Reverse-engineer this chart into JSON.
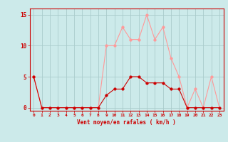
{
  "x": [
    0,
    1,
    2,
    3,
    4,
    5,
    6,
    7,
    8,
    9,
    10,
    11,
    12,
    13,
    14,
    15,
    16,
    17,
    18,
    19,
    20,
    21,
    22,
    23
  ],
  "y_mean": [
    5,
    0,
    0,
    0,
    0,
    0,
    0,
    0,
    0,
    2,
    3,
    3,
    5,
    5,
    4,
    4,
    4,
    3,
    3,
    0,
    0,
    0,
    0,
    0
  ],
  "y_gust": [
    5,
    0,
    0,
    0,
    0,
    0,
    0,
    0,
    0,
    10,
    10,
    13,
    11,
    11,
    15,
    11,
    13,
    8,
    5,
    0,
    3,
    0,
    5,
    0
  ],
  "color_mean": "#cc0000",
  "color_gust": "#ff9999",
  "bg_color": "#cceaea",
  "grid_color": "#aacccc",
  "axis_color": "#cc0000",
  "xlabel": "Vent moyen/en rafales ( km/h )",
  "ylabel_ticks": [
    0,
    5,
    10,
    15
  ],
  "xlim": [
    -0.5,
    23.5
  ],
  "ylim": [
    -0.5,
    16
  ],
  "markersize": 2.5,
  "linewidth": 0.8
}
